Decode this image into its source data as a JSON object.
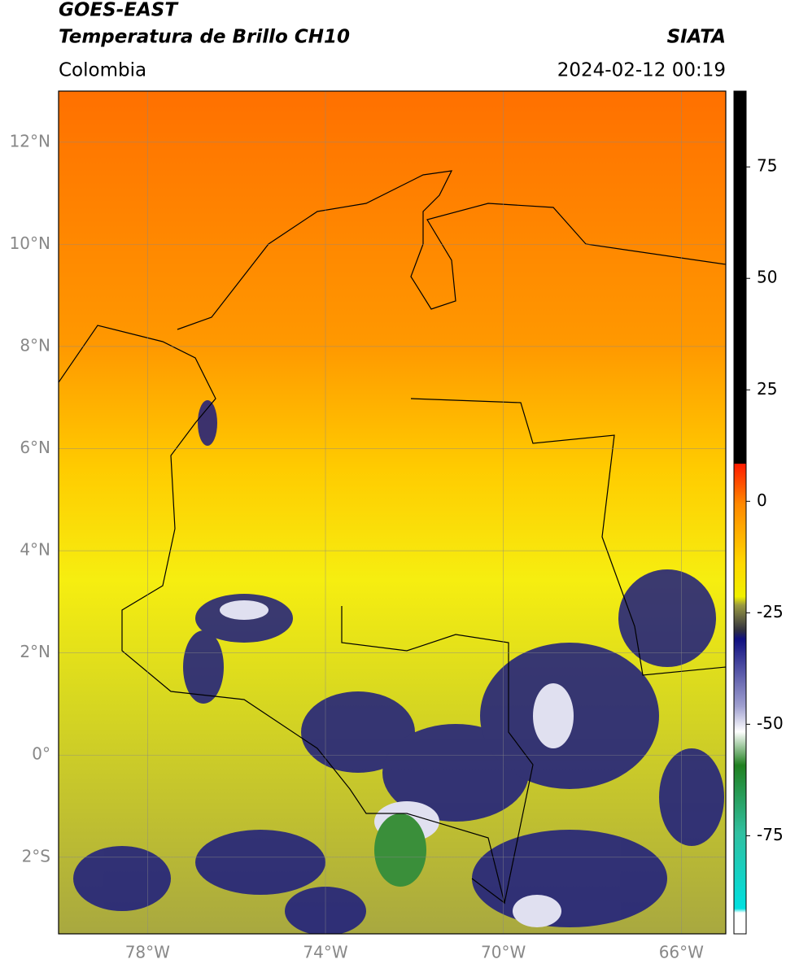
{
  "header": {
    "satellite": "GOES-EAST",
    "product": "Temperatura de Brillo CH10",
    "region": "Colombia",
    "agency": "SIATA",
    "datetime": "2024-02-12 00:19"
  },
  "map": {
    "latlim": [
      -3.5,
      13
    ],
    "lonlim": [
      -80,
      -65
    ],
    "lat_ticks": [
      {
        "value": 12,
        "label": "12°N"
      },
      {
        "value": 10,
        "label": "10°N"
      },
      {
        "value": 8,
        "label": "8°N"
      },
      {
        "value": 6,
        "label": "6°N"
      },
      {
        "value": 4,
        "label": "4°N"
      },
      {
        "value": 2,
        "label": "2°N"
      },
      {
        "value": 0,
        "label": "0°"
      },
      {
        "value": -2,
        "label": "2°S"
      }
    ],
    "lon_ticks": [
      {
        "value": -78,
        "label": "78°W"
      },
      {
        "value": -74,
        "label": "74°W"
      },
      {
        "value": -70,
        "label": "70°W"
      },
      {
        "value": -66,
        "label": "66°W"
      }
    ],
    "grid": true
  },
  "colorbar": {
    "lim": [
      -97,
      92
    ],
    "ticks": [
      75,
      50,
      25,
      0,
      -25,
      -50,
      -75
    ]
  }
}
